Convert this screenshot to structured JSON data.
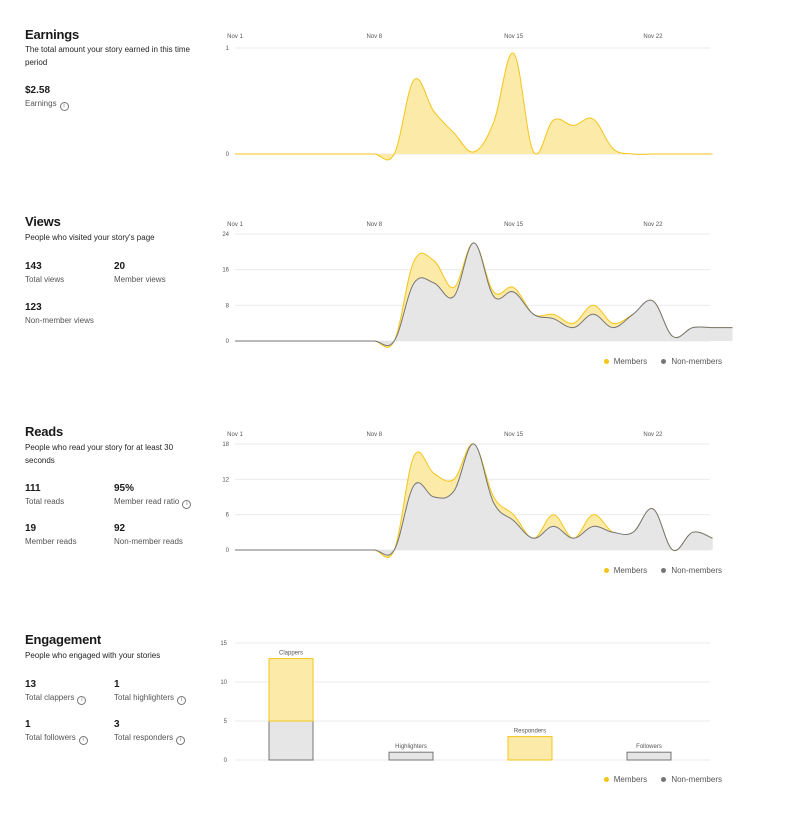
{
  "colors": {
    "members": "#F5C518",
    "members_fill": "#FBEAA8",
    "nonmembers": "#757575",
    "nonmembers_fill": "#E6E6E6",
    "grid": "#EBEBEB"
  },
  "earnings": {
    "title": "Earnings",
    "desc": "The total amount your story earned in this time period",
    "stats": [
      {
        "value": "$2.58",
        "label": "Earnings",
        "info": true
      }
    ]
  },
  "views": {
    "title": "Views",
    "desc": "People who visited your story's page",
    "stats": [
      {
        "value": "143",
        "label": "Total views",
        "info": false
      },
      {
        "value": "20",
        "label": "Member views",
        "info": false
      },
      {
        "value": "123",
        "label": "Non-member views",
        "info": false
      }
    ]
  },
  "reads": {
    "title": "Reads",
    "desc": "People who read your story for at least 30 seconds",
    "stats": [
      {
        "value": "111",
        "label": "Total reads",
        "info": false
      },
      {
        "value": "95%",
        "label": "Member read ratio",
        "info": true
      },
      {
        "value": "19",
        "label": "Member reads",
        "info": false
      },
      {
        "value": "92",
        "label": "Non-member reads",
        "info": false
      }
    ]
  },
  "engagement": {
    "title": "Engagement",
    "desc": "People who engaged with your stories",
    "stats": [
      {
        "value": "13",
        "label": "Total clappers",
        "info": true
      },
      {
        "value": "1",
        "label": "Total highlighters",
        "info": true
      },
      {
        "value": "1",
        "label": "Total followers",
        "info": true
      },
      {
        "value": "3",
        "label": "Total responders",
        "info": true
      }
    ]
  },
  "legend": {
    "members": "Members",
    "nonmembers": "Non-members"
  },
  "chart_data": [
    {
      "id": "earnings",
      "type": "area",
      "x_ticks": [
        "Nov 1",
        "Nov 8",
        "Nov 15",
        "Nov 22"
      ],
      "ylim": [
        0,
        1
      ],
      "y_ticks": [
        0,
        1
      ],
      "x": [
        1,
        2,
        3,
        4,
        5,
        6,
        7,
        8,
        9,
        10,
        11,
        12,
        13,
        14,
        15,
        16,
        17,
        18,
        19,
        20,
        21,
        22,
        23,
        24,
        25
      ],
      "series": [
        {
          "name": "Members",
          "values": [
            0,
            0,
            0,
            0,
            0,
            0,
            0,
            0,
            0,
            0.7,
            0.4,
            0.2,
            0.02,
            0.3,
            0.95,
            0.02,
            0.32,
            0.27,
            0.33,
            0.05,
            0,
            0,
            0,
            0,
            0
          ]
        }
      ],
      "grid": true
    },
    {
      "id": "views",
      "type": "area",
      "x_ticks": [
        "Nov 1",
        "Nov 8",
        "Nov 15",
        "Nov 22"
      ],
      "ylim": [
        0,
        24
      ],
      "y_ticks": [
        0,
        8,
        16,
        24
      ],
      "x": [
        1,
        2,
        3,
        4,
        5,
        6,
        7,
        8,
        9,
        10,
        11,
        12,
        13,
        14,
        15,
        16,
        17,
        18,
        19,
        20,
        21,
        22,
        23,
        24,
        25,
        26
      ],
      "series": [
        {
          "name": "Members",
          "values": [
            0,
            0,
            0,
            0,
            0,
            0,
            0,
            0,
            0,
            18,
            18,
            12,
            22,
            11,
            12,
            6,
            6,
            4,
            8,
            4,
            6,
            9,
            1,
            3,
            3,
            3
          ]
        },
        {
          "name": "Non-members",
          "values": [
            0,
            0,
            0,
            0,
            0,
            0,
            0,
            0,
            0,
            13,
            13,
            10,
            22,
            10,
            11,
            6,
            5,
            3,
            6,
            3,
            6,
            9,
            1,
            3,
            3,
            3
          ]
        }
      ],
      "grid": true,
      "legend": "bottom-right"
    },
    {
      "id": "reads",
      "type": "area",
      "x_ticks": [
        "Nov 1",
        "Nov 8",
        "Nov 15",
        "Nov 22"
      ],
      "ylim": [
        0,
        18
      ],
      "y_ticks": [
        0,
        6,
        12,
        18
      ],
      "x": [
        1,
        2,
        3,
        4,
        5,
        6,
        7,
        8,
        9,
        10,
        11,
        12,
        13,
        14,
        15,
        16,
        17,
        18,
        19,
        20,
        21,
        22,
        23,
        24,
        25
      ],
      "series": [
        {
          "name": "Members",
          "values": [
            0,
            0,
            0,
            0,
            0,
            0,
            0,
            0,
            0,
            16,
            13,
            12,
            18,
            9,
            6,
            2,
            6,
            2,
            6,
            3,
            3,
            7,
            0,
            3,
            2
          ]
        },
        {
          "name": "Non-members",
          "values": [
            0,
            0,
            0,
            0,
            0,
            0,
            0,
            0,
            0,
            11,
            9,
            10,
            18,
            8,
            5,
            2,
            4,
            2,
            4,
            3,
            3,
            7,
            0,
            3,
            2
          ]
        }
      ],
      "grid": true,
      "legend": "bottom-right"
    },
    {
      "id": "engagement",
      "type": "bar",
      "categories": [
        "Clappers",
        "Highlighters",
        "Responders",
        "Followers"
      ],
      "ylim": [
        0,
        15
      ],
      "y_ticks": [
        0,
        5,
        10,
        15
      ],
      "series": [
        {
          "name": "Members",
          "values": [
            8,
            0,
            3,
            0
          ]
        },
        {
          "name": "Non-members",
          "values": [
            5,
            1,
            0,
            1
          ]
        }
      ],
      "stacked": true,
      "grid": true,
      "legend": "bottom-right"
    }
  ]
}
